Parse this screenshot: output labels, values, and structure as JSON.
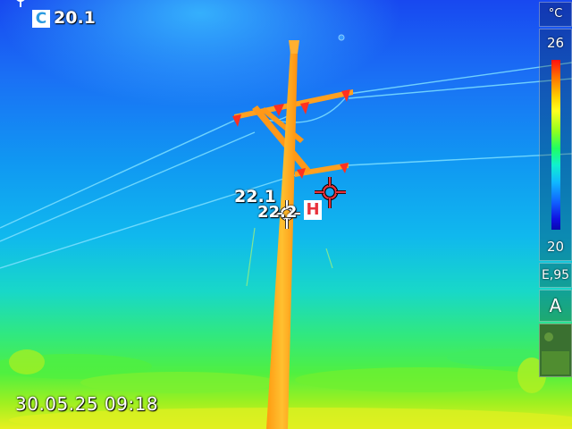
{
  "measurements": {
    "cold_spot": {
      "badge": "C",
      "value": "20.1"
    },
    "hot_spot": {
      "badge": "H"
    },
    "spot_value_1": "22.1",
    "spot_value_2": "22.2"
  },
  "timestamp": "30.05.25 09:18",
  "scale": {
    "unit": "°C",
    "max": "26",
    "min": "20"
  },
  "emissivity": "E,95",
  "mode": "A",
  "icons": {
    "center_crosshair": "crosshair-icon",
    "hot_crosshair": "hot-spot-crosshair-icon",
    "cold_marker": "cold-spot-marker-icon",
    "scene_icon": "image-thumbnail-icon"
  },
  "colors": {
    "hot_badge": "#e8323c",
    "cold_badge": "#2b9be0",
    "hot_crosshair": "#e8323c"
  }
}
